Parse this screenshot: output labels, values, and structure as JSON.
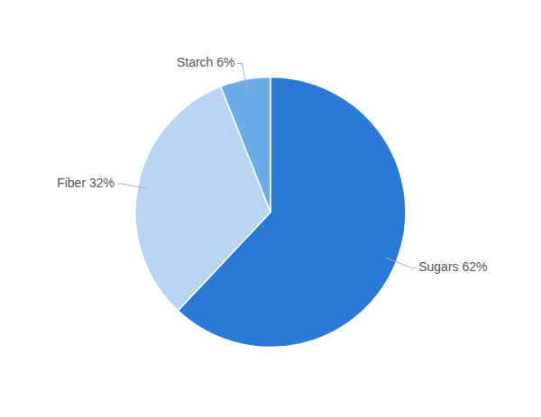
{
  "chart_data": {
    "type": "pie",
    "categories": [
      "Sugars 62%",
      "Fiber 32%",
      "Starch 6%"
    ],
    "values": [
      62,
      32,
      6
    ],
    "colors": [
      "#2979d8",
      "#b8d4f5",
      "#6aabe8"
    ]
  }
}
